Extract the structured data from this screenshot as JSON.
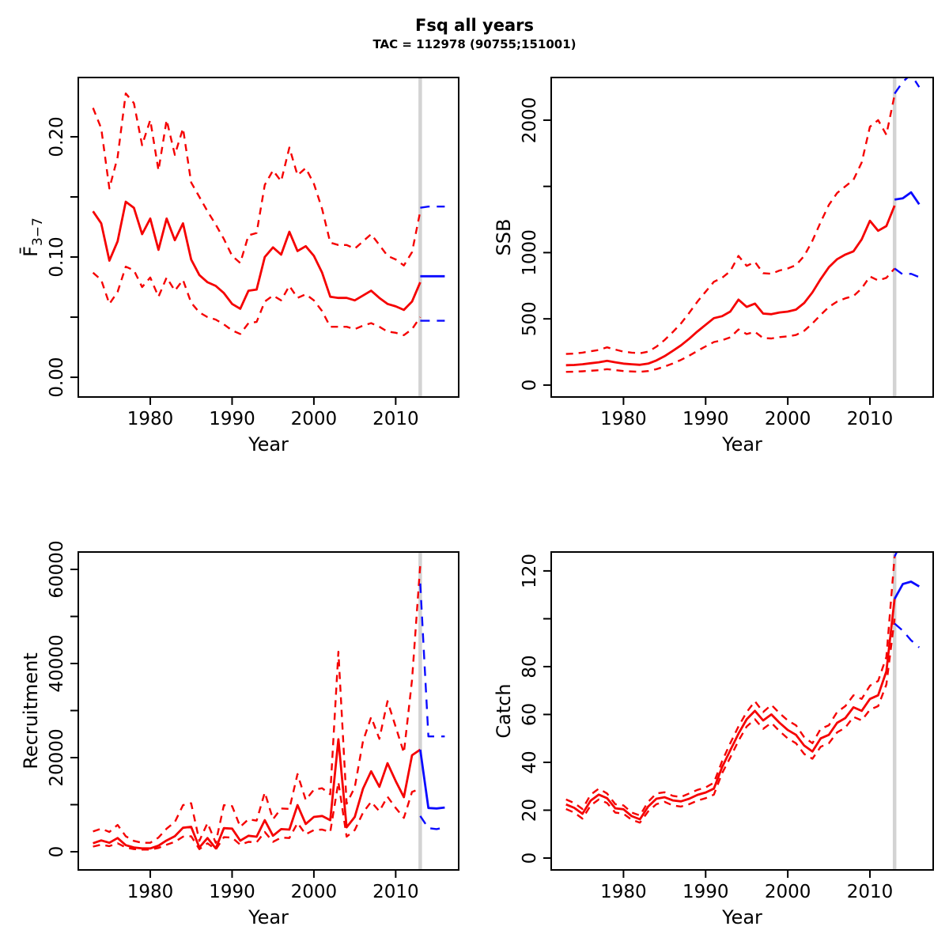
{
  "header": {
    "title": "Fsq all years",
    "subtitle": "TAC = 112978 (90755;151001)"
  },
  "colors": {
    "estimate": "#f50000",
    "forecast": "#0a0aff",
    "divider": "#d3d3d3",
    "frame": "#000000",
    "text": "#000000",
    "background": "#ffffff"
  },
  "forecast": {
    "divider_year": 2013,
    "estimate_years": "1973-2013",
    "forecast_years": "2013-2016"
  },
  "chart_data": [
    {
      "name": "fbar",
      "type": "line",
      "xlabel": "Year",
      "ylabel": {
        "base": "F̄",
        "sub": "3−7"
      },
      "xlim": [
        1971.2,
        2017.7
      ],
      "ylim": [
        -0.0164,
        0.2493
      ],
      "grid": false,
      "legend": false,
      "vline": 2013,
      "x_ticks": [
        {
          "v": 1980,
          "label": "1980"
        },
        {
          "v": 1990,
          "label": "1990"
        },
        {
          "v": 2000,
          "label": "2000"
        },
        {
          "v": 2010,
          "label": "2010"
        }
      ],
      "y_ticks": [
        {
          "v": 0,
          "label": "0.00"
        },
        {
          "v": 0.05,
          "label": ""
        },
        {
          "v": 0.1,
          "label": "0.10"
        },
        {
          "v": 0.15,
          "label": ""
        },
        {
          "v": 0.2,
          "label": "0.20"
        }
      ],
      "series": [
        {
          "name": "estimate-median",
          "color": "estimate",
          "dash": false,
          "x_start": 1973,
          "y": [
            0.138,
            0.128,
            0.097,
            0.113,
            0.146,
            0.141,
            0.119,
            0.132,
            0.106,
            0.132,
            0.114,
            0.128,
            0.098,
            0.085,
            0.079,
            0.076,
            0.07,
            0.061,
            0.057,
            0.072,
            0.073,
            0.1,
            0.108,
            0.102,
            0.121,
            0.105,
            0.109,
            0.101,
            0.087,
            0.067,
            0.066,
            0.066,
            0.064,
            0.068,
            0.072,
            0.066,
            0.061,
            0.059,
            0.056,
            0.063,
            0.079
          ]
        },
        {
          "name": "estimate-upper-ci",
          "color": "estimate",
          "dash": true,
          "x_start": 1973,
          "y": [
            0.224,
            0.207,
            0.157,
            0.183,
            0.236,
            0.228,
            0.193,
            0.214,
            0.172,
            0.214,
            0.185,
            0.207,
            0.162,
            0.15,
            0.138,
            0.127,
            0.115,
            0.101,
            0.095,
            0.118,
            0.12,
            0.16,
            0.172,
            0.163,
            0.191,
            0.168,
            0.174,
            0.161,
            0.14,
            0.112,
            0.11,
            0.11,
            0.107,
            0.113,
            0.119,
            0.11,
            0.101,
            0.098,
            0.093,
            0.104,
            0.138
          ]
        },
        {
          "name": "estimate-lower-ci",
          "color": "estimate",
          "dash": true,
          "x_start": 1973,
          "y": [
            0.087,
            0.081,
            0.061,
            0.071,
            0.092,
            0.089,
            0.075,
            0.083,
            0.067,
            0.083,
            0.072,
            0.081,
            0.062,
            0.054,
            0.05,
            0.048,
            0.044,
            0.039,
            0.036,
            0.045,
            0.046,
            0.063,
            0.068,
            0.064,
            0.076,
            0.066,
            0.069,
            0.064,
            0.055,
            0.042,
            0.042,
            0.042,
            0.04,
            0.043,
            0.045,
            0.042,
            0.038,
            0.037,
            0.035,
            0.04,
            0.05
          ]
        },
        {
          "name": "forecast-median",
          "color": "forecast",
          "dash": false,
          "x_start": 2013,
          "y": [
            0.084,
            0.084,
            0.084,
            0.084
          ]
        },
        {
          "name": "forecast-upper-ci",
          "color": "forecast",
          "dash": true,
          "x_start": 2013,
          "y": [
            0.141,
            0.142,
            0.142,
            0.142
          ]
        },
        {
          "name": "forecast-lower-ci",
          "color": "forecast",
          "dash": true,
          "x_start": 2013,
          "y": [
            0.047,
            0.047,
            0.047,
            0.047
          ]
        }
      ]
    },
    {
      "name": "ssb",
      "type": "line",
      "xlabel": "Year",
      "ylabel": {
        "base": "SSB",
        "sub": ""
      },
      "xlim": [
        1971.2,
        2017.7
      ],
      "ylim": [
        -90,
        2322
      ],
      "grid": false,
      "legend": false,
      "vline": 2013,
      "x_ticks": [
        {
          "v": 1980,
          "label": "1980"
        },
        {
          "v": 1990,
          "label": "1990"
        },
        {
          "v": 2000,
          "label": "2000"
        },
        {
          "v": 2010,
          "label": "2010"
        }
      ],
      "y_ticks": [
        {
          "v": 0,
          "label": "0"
        },
        {
          "v": 500,
          "label": "500"
        },
        {
          "v": 1000,
          "label": "1000"
        },
        {
          "v": 1500,
          "label": ""
        },
        {
          "v": 2000,
          "label": "2000"
        }
      ],
      "series": [
        {
          "name": "estimate-median",
          "color": "estimate",
          "dash": false,
          "x_start": 1973,
          "y": [
            150,
            152,
            157,
            165,
            172,
            183,
            172,
            162,
            157,
            153,
            162,
            186,
            218,
            258,
            300,
            350,
            405,
            455,
            505,
            520,
            555,
            645,
            590,
            615,
            540,
            535,
            548,
            555,
            570,
            620,
            700,
            800,
            890,
            950,
            985,
            1010,
            1100,
            1240,
            1165,
            1200,
            1355
          ]
        },
        {
          "name": "estimate-upper-ci",
          "color": "estimate",
          "dash": true,
          "x_start": 1973,
          "y": [
            235,
            238,
            245,
            255,
            265,
            285,
            268,
            252,
            245,
            240,
            252,
            290,
            340,
            400,
            465,
            545,
            630,
            705,
            780,
            810,
            860,
            975,
            900,
            930,
            845,
            840,
            865,
            880,
            905,
            975,
            1090,
            1230,
            1360,
            1450,
            1500,
            1550,
            1680,
            1950,
            2000,
            1890,
            2190
          ]
        },
        {
          "name": "estimate-lower-ci",
          "color": "estimate",
          "dash": true,
          "x_start": 1973,
          "y": [
            100,
            101,
            104,
            108,
            112,
            120,
            113,
            106,
            103,
            100,
            106,
            120,
            140,
            163,
            190,
            222,
            258,
            292,
            325,
            338,
            360,
            420,
            385,
            402,
            355,
            352,
            362,
            368,
            378,
            410,
            465,
            530,
            590,
            630,
            655,
            672,
            730,
            820,
            790,
            810,
            880
          ]
        },
        {
          "name": "forecast-median",
          "color": "forecast",
          "dash": false,
          "x_start": 2013,
          "y": [
            1400,
            1410,
            1455,
            1365
          ]
        },
        {
          "name": "forecast-upper-ci",
          "color": "forecast",
          "dash": true,
          "x_start": 2013,
          "y": [
            2200,
            2290,
            2345,
            2250
          ]
        },
        {
          "name": "forecast-lower-ci",
          "color": "forecast",
          "dash": true,
          "x_start": 2013,
          "y": [
            880,
            835,
            840,
            815
          ]
        }
      ]
    },
    {
      "name": "recruitment",
      "type": "line",
      "xlabel": "Year",
      "ylabel": {
        "base": "Recruitment",
        "sub": ""
      },
      "xlim": [
        1971.2,
        2017.7
      ],
      "ylim": [
        -3866,
        63697
      ],
      "grid": false,
      "legend": false,
      "vline": 2013,
      "x_ticks": [
        {
          "v": 1980,
          "label": "1980"
        },
        {
          "v": 1990,
          "label": "1990"
        },
        {
          "v": 2000,
          "label": "2000"
        },
        {
          "v": 2010,
          "label": "2010"
        }
      ],
      "y_ticks": [
        {
          "v": 0,
          "label": "0"
        },
        {
          "v": 10000,
          "label": ""
        },
        {
          "v": 20000,
          "label": "20000"
        },
        {
          "v": 30000,
          "label": ""
        },
        {
          "v": 40000,
          "label": "40000"
        },
        {
          "v": 50000,
          "label": ""
        },
        {
          "v": 60000,
          "label": "60000"
        }
      ],
      "series": [
        {
          "name": "estimate-median",
          "color": "estimate",
          "dash": false,
          "x_start": 1973,
          "y": [
            1800,
            2400,
            1900,
            2900,
            1400,
            900,
            700,
            700,
            1300,
            2400,
            3300,
            5100,
            5300,
            900,
            2900,
            700,
            5000,
            4900,
            2350,
            3400,
            3200,
            6700,
            3400,
            4800,
            4700,
            9900,
            5900,
            7400,
            7600,
            6700,
            23900,
            5200,
            7400,
            13400,
            17100,
            13800,
            18800,
            15000,
            11600,
            20500,
            21700
          ]
        },
        {
          "name": "estimate-upper-ci",
          "color": "estimate",
          "dash": true,
          "x_start": 1973,
          "y": [
            4300,
            4900,
            4200,
            5700,
            3300,
            2300,
            1900,
            1900,
            3000,
            4900,
            6300,
            9900,
            10300,
            2300,
            6100,
            1900,
            9900,
            9700,
            5300,
            6900,
            6600,
            12600,
            6900,
            9200,
            9100,
            16500,
            11000,
            13200,
            13500,
            12200,
            42500,
            10200,
            13700,
            23500,
            28600,
            24000,
            32000,
            26500,
            21000,
            36500,
            61000
          ]
        },
        {
          "name": "estimate-lower-ci",
          "color": "estimate",
          "dash": true,
          "x_start": 1973,
          "y": [
            1100,
            1500,
            1200,
            1800,
            900,
            550,
            450,
            450,
            800,
            1500,
            2100,
            3200,
            3300,
            550,
            1800,
            450,
            3100,
            3000,
            1500,
            2100,
            2000,
            4200,
            2100,
            3000,
            2900,
            6100,
            3700,
            4600,
            4700,
            4200,
            14800,
            3200,
            4600,
            8300,
            10600,
            8600,
            11700,
            9300,
            7200,
            12700,
            13400
          ]
        },
        {
          "name": "forecast-median",
          "color": "forecast",
          "dash": false,
          "x_start": 2013,
          "y": [
            21700,
            9300,
            9200,
            9400
          ]
        },
        {
          "name": "forecast-upper-ci",
          "color": "forecast",
          "dash": true,
          "x_start": 2013,
          "y": [
            57000,
            24500,
            24500,
            24500
          ]
        },
        {
          "name": "forecast-lower-ci",
          "color": "forecast",
          "dash": true,
          "x_start": 2013,
          "y": [
            7600,
            5000,
            4800,
            5200
          ]
        }
      ]
    },
    {
      "name": "catch",
      "type": "line",
      "xlabel": "Year",
      "ylabel": {
        "base": "Catch",
        "sub": ""
      },
      "xlim": [
        1971.2,
        2017.7
      ],
      "ylim": [
        -4.96,
        127.9
      ],
      "grid": false,
      "legend": false,
      "vline": 2013,
      "x_ticks": [
        {
          "v": 1980,
          "label": "1980"
        },
        {
          "v": 1990,
          "label": "1990"
        },
        {
          "v": 2000,
          "label": "2000"
        },
        {
          "v": 2010,
          "label": "2010"
        }
      ],
      "y_ticks": [
        {
          "v": 0,
          "label": "0"
        },
        {
          "v": 20,
          "label": "20"
        },
        {
          "v": 40,
          "label": "40"
        },
        {
          "v": 60,
          "label": "60"
        },
        {
          "v": 80,
          "label": "80"
        },
        {
          "v": 100,
          "label": ""
        },
        {
          "v": 120,
          "label": "120"
        }
      ],
      "series": [
        {
          "name": "estimate-median",
          "color": "estimate",
          "dash": false,
          "x_start": 1973,
          "y": [
            22.4,
            21,
            18.5,
            24,
            26.5,
            25,
            20.8,
            20.4,
            17.5,
            16.2,
            21.5,
            24.8,
            25.4,
            24.1,
            23.7,
            24.8,
            26.4,
            27.4,
            29,
            38,
            45,
            52,
            58,
            61.5,
            57.5,
            60,
            56.5,
            53.5,
            51.5,
            47,
            44.5,
            50,
            51.5,
            56.5,
            58.5,
            63,
            61.5,
            66.5,
            68,
            78,
            108.3
          ]
        },
        {
          "name": "estimate-upper-ci",
          "color": "estimate",
          "dash": true,
          "x_start": 1973,
          "y": [
            24.5,
            23,
            20.5,
            26.5,
            29,
            27,
            22.5,
            22,
            19,
            17.8,
            23.5,
            27,
            27.5,
            26,
            25.5,
            27,
            28.5,
            29.5,
            31.5,
            40.5,
            48,
            55,
            61,
            65.5,
            61,
            64,
            60.5,
            57.5,
            55.5,
            50.5,
            48,
            54,
            55.5,
            61,
            63.5,
            68,
            66.5,
            72,
            74,
            84,
            126
          ]
        },
        {
          "name": "estimate-lower-ci",
          "color": "estimate",
          "dash": true,
          "x_start": 1973,
          "y": [
            20.5,
            19,
            16.5,
            22,
            24.5,
            23,
            19,
            18.5,
            16,
            14.8,
            19.5,
            22.5,
            23.5,
            22,
            21.5,
            22.5,
            24,
            25,
            26.5,
            35.5,
            42,
            49,
            55,
            58,
            54,
            56.5,
            53,
            50,
            48,
            43.5,
            41.5,
            46.5,
            48,
            52.5,
            54.5,
            59,
            57.5,
            62,
            63.5,
            72.5,
            100
          ]
        },
        {
          "name": "forecast-median",
          "color": "forecast",
          "dash": false,
          "x_start": 2013,
          "y": [
            108.3,
            114.5,
            115.5,
            113.5
          ]
        },
        {
          "name": "forecast-upper-ci",
          "color": "forecast",
          "dash": true,
          "x_start": 2013,
          "y": [
            126,
            133,
            134,
            132
          ]
        },
        {
          "name": "forecast-lower-ci",
          "color": "forecast",
          "dash": true,
          "x_start": 2013,
          "y": [
            98,
            95,
            91,
            88
          ]
        }
      ]
    }
  ]
}
